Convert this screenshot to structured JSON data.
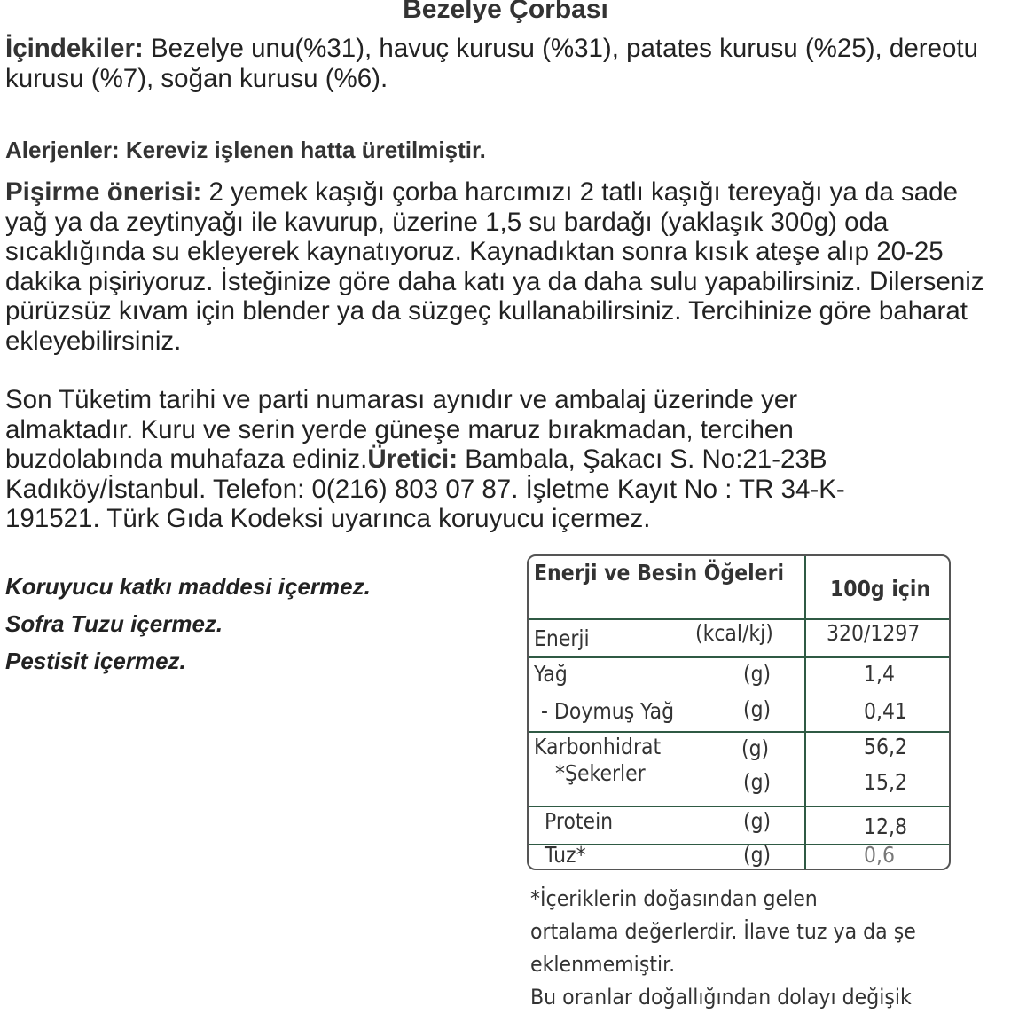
{
  "title": "Bezelye Çorbası",
  "ingredients": {
    "label": "İçindekiler:",
    "text": " Bezelye unu(%31), havuç kurusu (%31), patates kurusu (%25), dereotu kurusu (%7), soğan kurusu (%6)."
  },
  "allergens": {
    "label": "Alerjenler: Kereviz işlenen hatta üretilmiştir."
  },
  "cooking": {
    "label": "Pişirme önerisi:",
    "text": " 2 yemek kaşığı çorba harcımızı 2 tatlı kaşığı tereyağı ya da sade yağ ya da zeytinyağı ile kavurup, üzerine 1,5 su bardağı (yaklaşık 300g) oda sıcaklığında su ekleyerek kaynatıyoruz. Kaynadıktan sonra kısık ateşe alıp 20-25 dakika pişiriyoruz. İsteğinize göre daha katı ya da daha sulu yapabilirsiniz. Dilerseniz pürüzsüz kıvam için blender ya da süzgeç kullanabilirsiniz. Tercihinize göre baharat ekleyebilirsiniz."
  },
  "storage": {
    "text": "Son Tüketim tarihi ve parti numarası aynıdır ve ambalaj üzerinde yer almaktadır. Kuru ve serin yerde güneşe maruz bırakmadan, tercihen buzdolabında muhafaza ediniz.",
    "producer_label": "Üretici:",
    "producer_text": " Bambala, Şakacı S. No:21-23B Kadıköy/İstanbul. Telefon: 0(216) 803 07 87. İşletme Kayıt No : TR 34-K-191521. Türk Gıda Kodeksi uyarınca koruyucu içermez."
  },
  "claims": [
    "Koruyucu katkı maddesi içermez.",
    "Sofra Tuzu içermez.",
    "Pestisit içermez."
  ],
  "nutrition": {
    "header": "Enerji ve Besin Öğeleri",
    "per": "100g için",
    "rows": [
      {
        "name": "Enerji",
        "unit": "(kcal/kj)",
        "value": "320/1297"
      },
      {
        "name": "Yağ",
        "unit": "(g)",
        "value": "1,4"
      },
      {
        "name": "- Doymuş Yağ",
        "unit": "(g)",
        "value": "0,41"
      },
      {
        "name": "Karbonhidrat",
        "unit": "(g)",
        "value": "56,2"
      },
      {
        "name": "*Şekerler",
        "unit": "(g)",
        "value": "15,2"
      },
      {
        "name": "Protein",
        "unit": "(g)",
        "value": "12,8"
      },
      {
        "name": "Tuz*",
        "unit": "(g)",
        "value": "0,6"
      }
    ],
    "footnote": [
      "*İçeriklerin doğasından gelen",
      " ortalama değerlerdir. İlave tuz ya da şe",
      "eklenmemiştir.",
      "Bu oranlar doğallığından dolayı değişik"
    ]
  },
  "colors": {
    "table_line": "#2f5a44",
    "text": "#222222"
  }
}
